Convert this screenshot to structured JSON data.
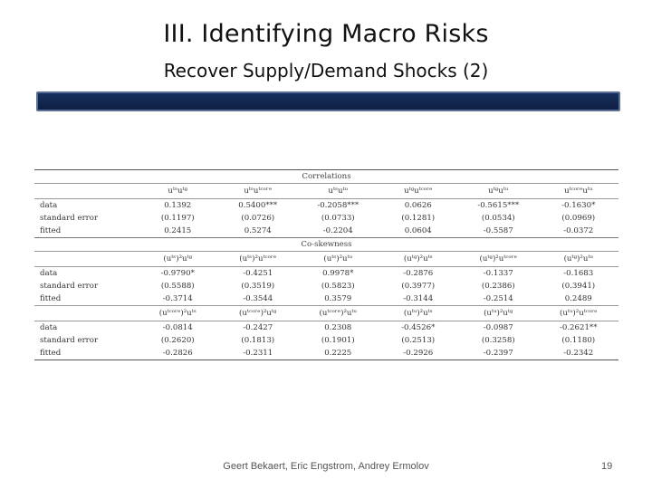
{
  "slide": {
    "title": "III. Identifying Macro Risks",
    "subtitle": "Recover Supply/Demand Shocks (2)",
    "banner_color": "#132a55"
  },
  "table": {
    "sections": [
      {
        "title": "Correlations",
        "header": [
          "uᵗˢuᵗᵍ",
          "uᵗˢuᵗᶜᵒʳᵉ",
          "uᵗˢuᵗᵘ",
          "uᵗᵍuᵗᶜᵒʳᵉ",
          "uᵗᵍuᵗᵘ",
          "uᵗᶜᵒʳᵉuᵗᵘ"
        ],
        "rows": [
          {
            "label": "data",
            "values": [
              "0.1392",
              "0.5400***",
              "-0.2058***",
              "0.0626",
              "-0.5615***",
              "-0.1630*"
            ]
          },
          {
            "label": "standard error",
            "values": [
              "(0.1197)",
              "(0.0726)",
              "(0.0733)",
              "(0.1281)",
              "(0.0534)",
              "(0.0969)"
            ]
          },
          {
            "label": "fitted",
            "values": [
              "0.2415",
              "0.5274",
              "-0.2204",
              "0.0604",
              "-0.5587",
              "-0.0372"
            ]
          }
        ]
      },
      {
        "title": "Co-skewness",
        "header": [
          "(uᵗˢ)²uᵗᵍ",
          "(uᵗˢ)²uᵗᶜᵒʳᵉ",
          "(uᵗˢ)²uᵗᵘ",
          "(uᵗᵍ)²uᵗˢ",
          "(uᵗᵍ)²uᵗᶜᵒʳᵉ",
          "(uᵗᵍ)²uᵗᵘ"
        ],
        "rows": [
          {
            "label": "data",
            "values": [
              "-0.9790*",
              "-0.4251",
              "0.9978*",
              "-0.2876",
              "-0.1337",
              "-0.1683"
            ]
          },
          {
            "label": "standard error",
            "values": [
              "(0.5588)",
              "(0.3519)",
              "(0.5823)",
              "(0.3977)",
              "(0.2386)",
              "(0.3941)"
            ]
          },
          {
            "label": "fitted",
            "values": [
              "-0.3714",
              "-0.3544",
              "0.3579",
              "-0.3144",
              "-0.2514",
              "0.2489"
            ]
          }
        ],
        "header2": [
          "(uᵗᶜᵒʳᵉ)²uᵗˢ",
          "(uᵗᶜᵒʳᵉ)²uᵗᵍ",
          "(uᵗᶜᵒʳᵉ)²uᵗᵘ",
          "(uᵗᵘ)²uᵗˢ",
          "(uᵗᵘ)²uᵗᵍ",
          "(uᵗᵘ)²uᵗᶜᵒʳᵉ"
        ],
        "rows2": [
          {
            "label": "data",
            "values": [
              "-0.0814",
              "-0.2427",
              "0.2308",
              "-0.4526*",
              "-0.0987",
              "-0.2621**"
            ]
          },
          {
            "label": "standard error",
            "values": [
              "(0.2620)",
              "(0.1813)",
              "(0.1901)",
              "(0.2513)",
              "(0.3258)",
              "(0.1180)"
            ]
          },
          {
            "label": "fitted",
            "values": [
              "-0.2826",
              "-0.2311",
              "0.2225",
              "-0.2926",
              "-0.2397",
              "-0.2342"
            ]
          }
        ]
      }
    ]
  },
  "footer": {
    "authors": "Geert Bekaert, Eric Engstrom, Andrey Ermolov",
    "page_number": "19"
  }
}
